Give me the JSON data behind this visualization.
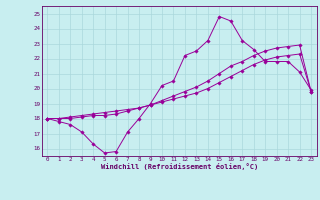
{
  "xlabel": "Windchill (Refroidissement éolien,°C)",
  "background_color": "#c8eef0",
  "grid_color": "#aad8dc",
  "line_color": "#990099",
  "xlim": [
    -0.5,
    23.5
  ],
  "ylim": [
    15.5,
    25.5
  ],
  "xticks": [
    0,
    1,
    2,
    3,
    4,
    5,
    6,
    7,
    8,
    9,
    10,
    11,
    12,
    13,
    14,
    15,
    16,
    17,
    18,
    19,
    20,
    21,
    22,
    23
  ],
  "yticks": [
    16,
    17,
    18,
    19,
    20,
    21,
    22,
    23,
    24,
    25
  ],
  "hours": [
    0,
    1,
    2,
    3,
    4,
    5,
    6,
    7,
    8,
    9,
    10,
    11,
    12,
    13,
    14,
    15,
    16,
    17,
    18,
    19,
    20,
    21,
    22,
    23
  ],
  "line1": [
    18.0,
    17.8,
    17.6,
    17.1,
    16.3,
    15.7,
    15.8,
    17.1,
    18.0,
    19.0,
    20.2,
    20.5,
    22.2,
    22.5,
    23.2,
    24.8,
    24.5,
    23.2,
    22.6,
    21.8,
    21.8,
    21.8,
    21.1,
    19.9
  ],
  "line2": [
    18.0,
    18.0,
    18.0,
    18.1,
    18.2,
    18.2,
    18.3,
    18.5,
    18.7,
    18.9,
    19.2,
    19.5,
    19.8,
    20.1,
    20.5,
    21.0,
    21.5,
    21.8,
    22.2,
    22.5,
    22.7,
    22.8,
    22.9,
    19.8
  ],
  "line3": [
    18.0,
    18.0,
    18.1,
    18.2,
    18.3,
    18.4,
    18.5,
    18.6,
    18.7,
    18.9,
    19.1,
    19.3,
    19.5,
    19.7,
    20.0,
    20.4,
    20.8,
    21.2,
    21.6,
    21.9,
    22.1,
    22.2,
    22.3,
    19.8
  ],
  "tick_fontsize": 4.2,
  "xlabel_fontsize": 5.0,
  "marker_size": 1.8,
  "line_width": 0.7
}
